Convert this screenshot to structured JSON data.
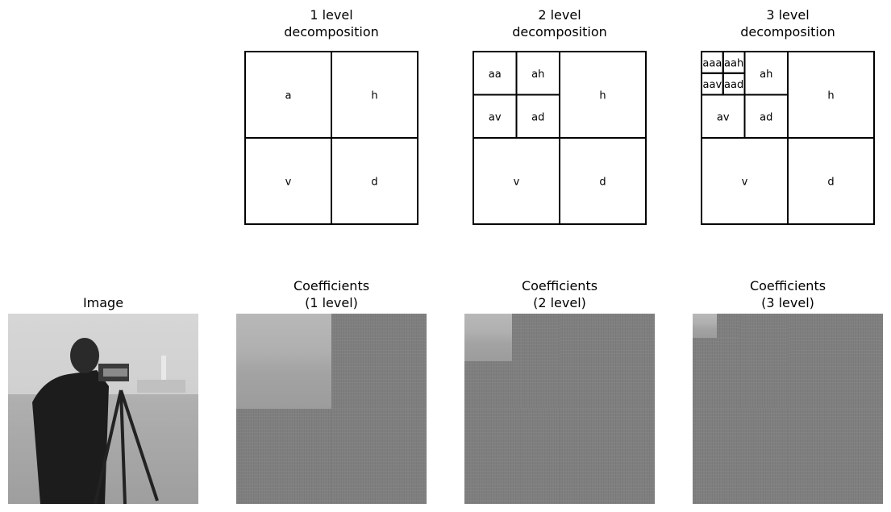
{
  "diagrams": [
    {
      "title": "1 level\ndecomposition",
      "cells": [
        {
          "label": "a",
          "r": [
            0,
            0,
            0.5,
            0.5
          ]
        },
        {
          "label": "h",
          "r": [
            0.5,
            0,
            0.5,
            0.5
          ]
        },
        {
          "label": "v",
          "r": [
            0,
            0.5,
            0.5,
            0.5
          ]
        },
        {
          "label": "d",
          "r": [
            0.5,
            0.5,
            0.5,
            0.5
          ]
        }
      ]
    },
    {
      "title": "2 level\ndecomposition",
      "cells": [
        {
          "label": "aa",
          "r": [
            0,
            0,
            0.25,
            0.25
          ]
        },
        {
          "label": "ah",
          "r": [
            0.25,
            0,
            0.25,
            0.25
          ]
        },
        {
          "label": "av",
          "r": [
            0,
            0.25,
            0.25,
            0.25
          ]
        },
        {
          "label": "ad",
          "r": [
            0.25,
            0.25,
            0.25,
            0.25
          ]
        },
        {
          "label": "h",
          "r": [
            0.5,
            0,
            0.5,
            0.5
          ]
        },
        {
          "label": "v",
          "r": [
            0,
            0.5,
            0.5,
            0.5
          ]
        },
        {
          "label": "d",
          "r": [
            0.5,
            0.5,
            0.5,
            0.5
          ]
        }
      ]
    },
    {
      "title": "3 level\ndecomposition",
      "cells": [
        {
          "label": "aaa",
          "r": [
            0,
            0,
            0.125,
            0.125
          ]
        },
        {
          "label": "aah",
          "r": [
            0.125,
            0,
            0.125,
            0.125
          ]
        },
        {
          "label": "aav",
          "r": [
            0,
            0.125,
            0.125,
            0.125
          ]
        },
        {
          "label": "aad",
          "r": [
            0.125,
            0.125,
            0.125,
            0.125
          ]
        },
        {
          "label": "ah",
          "r": [
            0.25,
            0,
            0.25,
            0.25
          ]
        },
        {
          "label": "av",
          "r": [
            0,
            0.25,
            0.25,
            0.25
          ]
        },
        {
          "label": "ad",
          "r": [
            0.25,
            0.25,
            0.25,
            0.25
          ]
        },
        {
          "label": "h",
          "r": [
            0.5,
            0,
            0.5,
            0.5
          ]
        },
        {
          "label": "v",
          "r": [
            0,
            0.5,
            0.5,
            0.5
          ]
        },
        {
          "label": "d",
          "r": [
            0.5,
            0.5,
            0.5,
            0.5
          ]
        }
      ]
    }
  ],
  "image_panel": {
    "title": "Image"
  },
  "coefficient_panels": [
    {
      "title": "Coefficients\n(1 level)",
      "levels": 1
    },
    {
      "title": "Coefficients\n(2 level)",
      "levels": 2
    },
    {
      "title": "Coefficients\n(3 level)",
      "levels": 3
    }
  ],
  "colors": {
    "line": "#000000",
    "detail_gray": "#7f7f7f"
  }
}
